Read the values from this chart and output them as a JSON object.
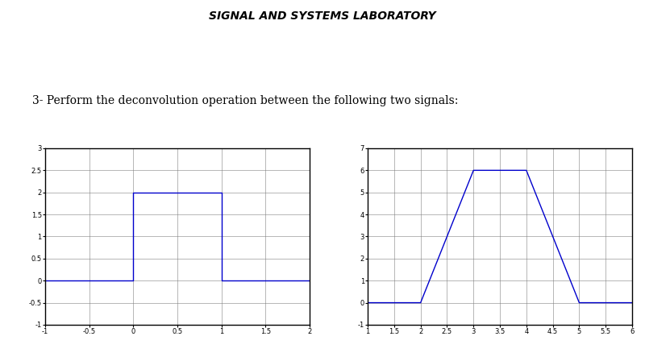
{
  "title": "SIGNAL AND SYSTEMS LABORATORY",
  "subtitle": "3- Perform the deconvolution operation between the following two signals:",
  "plot1": {
    "xlim": [
      -1,
      2
    ],
    "ylim": [
      -1,
      3
    ],
    "xticks": [
      -1,
      -0.5,
      0,
      0.5,
      1,
      1.5,
      2
    ],
    "yticks": [
      -1,
      -0.5,
      0,
      0.5,
      1,
      1.5,
      2,
      2.5,
      3
    ],
    "signal_x": [
      -1,
      0,
      0,
      1,
      1,
      2
    ],
    "signal_y": [
      0,
      0,
      2,
      2,
      0,
      0
    ],
    "color": "#0000CC"
  },
  "plot2": {
    "xlim": [
      1,
      6
    ],
    "ylim": [
      -1,
      7
    ],
    "xticks": [
      1,
      1.5,
      2,
      2.5,
      3,
      3.5,
      4,
      4.5,
      5,
      5.5,
      6
    ],
    "yticks": [
      -1,
      0,
      1,
      2,
      3,
      4,
      5,
      6,
      7
    ],
    "signal_x": [
      1,
      2,
      3,
      4,
      5,
      6
    ],
    "signal_y": [
      0,
      0,
      6,
      6,
      0,
      0
    ],
    "color": "#0000CC"
  },
  "bg_color": "#ffffff",
  "title_fontsize": 10,
  "subtitle_fontsize": 10,
  "tick_fontsize": 6
}
